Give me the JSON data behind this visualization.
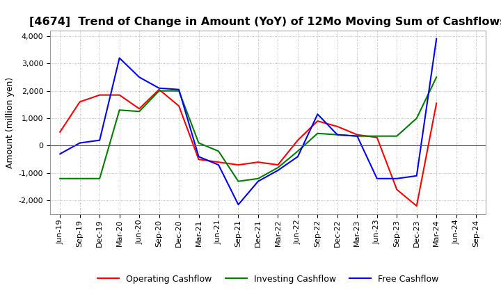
{
  "title": "[4674]  Trend of Change in Amount (YoY) of 12Mo Moving Sum of Cashflows",
  "ylabel": "Amount (million yen)",
  "ylim": [
    -2500,
    4200
  ],
  "yticks": [
    -2000,
    -1000,
    0,
    1000,
    2000,
    3000,
    4000
  ],
  "x_labels": [
    "Jun-19",
    "Sep-19",
    "Dec-19",
    "Mar-20",
    "Jun-20",
    "Sep-20",
    "Dec-20",
    "Mar-21",
    "Jun-21",
    "Sep-21",
    "Dec-21",
    "Mar-22",
    "Jun-22",
    "Sep-22",
    "Dec-22",
    "Mar-23",
    "Jun-23",
    "Sep-23",
    "Dec-23",
    "Mar-24",
    "Jun-24",
    "Sep-24"
  ],
  "operating": [
    500,
    1600,
    1850,
    1850,
    1350,
    2050,
    1450,
    -500,
    -600,
    -700,
    -600,
    -700,
    200,
    900,
    700,
    400,
    300,
    -1600,
    -2200,
    1550,
    null,
    null
  ],
  "investing": [
    -1200,
    -1200,
    -1200,
    1300,
    1250,
    2000,
    2000,
    100,
    -200,
    -1300,
    -1200,
    -800,
    -200,
    450,
    400,
    350,
    350,
    350,
    1000,
    2500,
    null,
    null
  ],
  "free": [
    -300,
    100,
    200,
    3200,
    2500,
    2100,
    2050,
    -400,
    -700,
    -2150,
    -1300,
    -900,
    -400,
    1150,
    400,
    350,
    -1200,
    -1200,
    -1100,
    3900,
    null,
    null
  ],
  "op_color": "#ff0000",
  "inv_color": "#008000",
  "free_color": "#0000ff",
  "legend_labels": [
    "Operating Cashflow",
    "Investing Cashflow",
    "Free Cashflow"
  ],
  "background_color": "#ffffff",
  "grid_color": "#aaaaaa",
  "title_fontsize": 11.5,
  "tick_fontsize": 8,
  "ylabel_fontsize": 9
}
